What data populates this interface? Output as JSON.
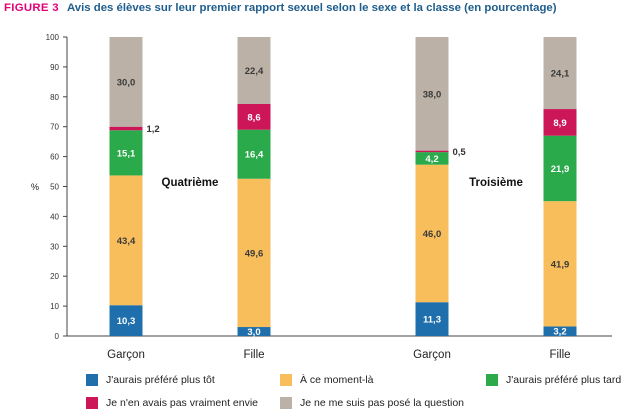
{
  "figure_label": "FIGURE 3",
  "title": "Avis des élèves sur leur premier rapport sexuel selon le sexe et la classe (en pourcentage)",
  "chart_data": {
    "type": "bar",
    "stacked": true,
    "title": "Avis des élèves sur leur premier rapport sexuel selon le sexe et la classe (en pourcentage)",
    "ylabel": "%",
    "ylim": [
      0,
      100
    ],
    "yticks": [
      "0",
      "10",
      "20",
      "30",
      "40",
      "50",
      "60",
      "70",
      "80",
      "90",
      "100"
    ],
    "grid": false,
    "legend_position": "bottom",
    "panel_labels": [
      "Quatrième",
      "Troisième"
    ],
    "categories": [
      "Garçon",
      "Fille",
      "Garçon",
      "Fille"
    ],
    "category_panels": [
      "Quatrième",
      "Quatrième",
      "Troisième",
      "Troisième"
    ],
    "series": [
      {
        "name": "J'aurais préféré plus tôt",
        "color": "#1f6fad",
        "values": [
          10.3,
          3.0,
          11.3,
          3.2
        ],
        "labels": [
          "10,3",
          "3,0",
          "11,3",
          "3,2"
        ]
      },
      {
        "name": "À ce moment-là",
        "color": "#f9be5c",
        "values": [
          43.4,
          49.6,
          46.0,
          41.9
        ],
        "labels": [
          "43,4",
          "49,6",
          "46,0",
          "41,9"
        ]
      },
      {
        "name": "J'aurais préféré plus tard",
        "color": "#2aaa4a",
        "values": [
          15.1,
          16.4,
          4.2,
          21.9
        ],
        "labels": [
          "15,1",
          "16,4",
          "4,2",
          "21,9"
        ]
      },
      {
        "name": "Je n'en avais pas vraiment envie",
        "color": "#cc1657",
        "values": [
          1.2,
          8.6,
          0.5,
          8.9
        ],
        "labels": [
          "1,2",
          "8,6",
          "0,5",
          "8,9"
        ]
      },
      {
        "name": "Je ne me suis pas posé la question",
        "color": "#bbb1a6",
        "values": [
          30.0,
          22.4,
          38.0,
          24.1
        ],
        "labels": [
          "30,0",
          "22,4",
          "38,0",
          "24,1"
        ]
      }
    ]
  }
}
